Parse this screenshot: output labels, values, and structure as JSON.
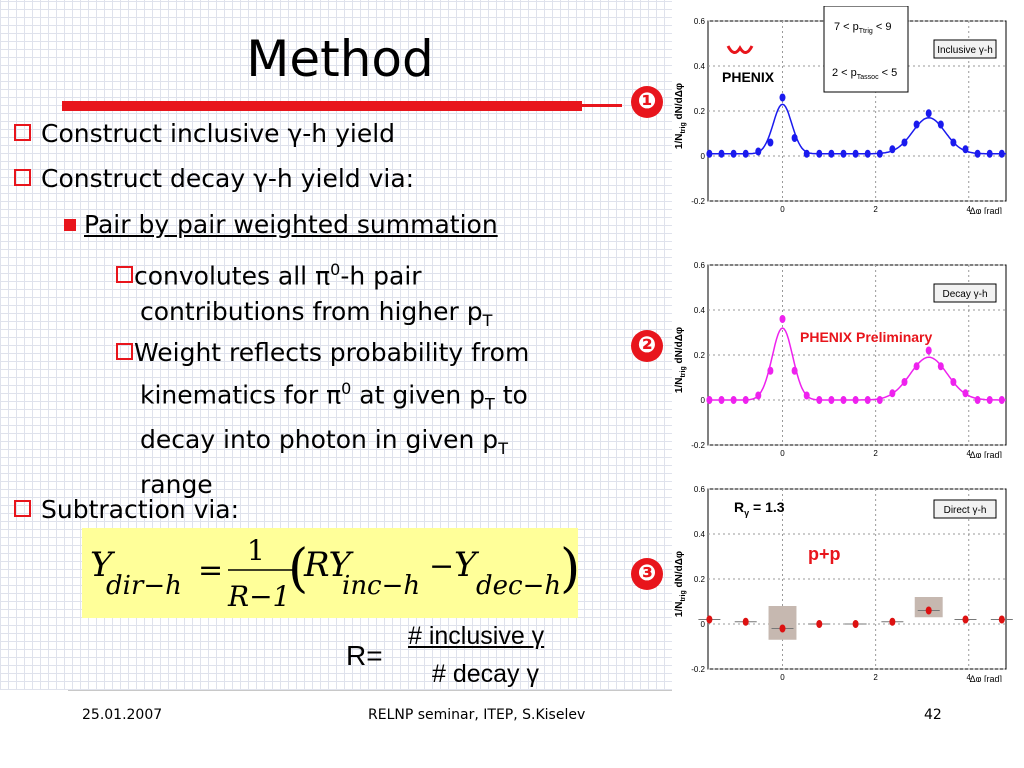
{
  "slide": {
    "title": "Method",
    "bullets": {
      "b1_pre": "Construct inclusive ",
      "b1_sym": "γ",
      "b1_post": "-h yield",
      "b2_pre": "Construct decay ",
      "b2_sym": "γ",
      "b2_post": "-h yield via:",
      "b3": "Pair by pair weighted summation",
      "b4_l1_pre": "convolutes all ",
      "b4_l1_sym": "π",
      "b4_l1_sup": "0",
      "b4_l1_post": "-h pair",
      "b4_l2": "contributions from higher p",
      "b4_l2_sub": "T",
      "b5_l1": "Weight reflects probability from",
      "b5_l2_pre": "kinematics for ",
      "b5_l2_sym": "π",
      "b5_l2_sup": "0",
      "b5_l2_mid": " at given p",
      "b5_l2_sub": "T",
      "b5_l2_post": " to",
      "b5_l3": "decay into photon in given p",
      "b5_l3_sub": "T",
      "b5_l4": "range",
      "b6": "Subtraction via:"
    },
    "formula": {
      "Y1": "Y",
      "sub1": "dir−h",
      "eq": "=",
      "one": "1",
      "den": "R−1",
      "lp": "(",
      "RY": "RY",
      "sub2": "inc−h",
      "minus": "−",
      "Y2": "Y",
      "sub3": "dec−h",
      "rp": ")"
    },
    "ratio": {
      "label": "R=",
      "numerator": "# inclusive γ",
      "denominator": "# decay γ"
    },
    "markers": [
      "❶",
      "❷",
      "❸"
    ],
    "footer": {
      "date": "25.01.2007",
      "center": "RELNP seminar,  ITEP,  S.Kiselev",
      "page": "42"
    }
  },
  "charts": {
    "c1": {
      "type": "scatter",
      "title": "Inclusive γ-h",
      "logo": "PHENIX",
      "info_line1_pre": "7 < p",
      "info_line1_sub": "Ttrig",
      "info_line1_post": " < 9",
      "info_line2_pre": "2 < p",
      "info_line2_sub": "Tassoc",
      "info_line2_post": " < 5",
      "ylabel": "1/N",
      "ylabel_sub": "trig",
      "ylabel_post": " dN/dΔφ",
      "xlabel": "Δφ [rad]",
      "yticks": [
        "0.6",
        "0.4",
        "0.2",
        "0",
        "-0.2"
      ],
      "xticks": [
        "0",
        "2",
        "4"
      ],
      "xlim": [
        -1.6,
        4.8
      ],
      "ylim": [
        -0.2,
        0.6
      ],
      "color": "#1a1aee",
      "x": [
        -1.57,
        -1.31,
        -1.05,
        -0.79,
        -0.52,
        -0.26,
        0.0,
        0.26,
        0.52,
        0.79,
        1.05,
        1.31,
        1.57,
        1.83,
        2.09,
        2.36,
        2.62,
        2.88,
        3.14,
        3.4,
        3.67,
        3.93,
        4.19,
        4.45,
        4.71
      ],
      "y": [
        0.01,
        0.01,
        0.01,
        0.01,
        0.02,
        0.06,
        0.26,
        0.08,
        0.01,
        0.01,
        0.01,
        0.01,
        0.01,
        0.01,
        0.01,
        0.03,
        0.06,
        0.14,
        0.19,
        0.14,
        0.06,
        0.03,
        0.01,
        0.01,
        0.01
      ],
      "fit": {
        "base": 0.01,
        "near_amp": 0.22,
        "near_sigma": 0.2,
        "away_amp": 0.16,
        "away_sigma": 0.35
      }
    },
    "c2": {
      "type": "scatter",
      "title": "Decay γ-h",
      "annotation": "PHENIX Preliminary",
      "ylabel": "1/N",
      "ylabel_sub": "trig",
      "ylabel_post": " dN/dΔφ",
      "xlabel": "Δφ [rad]",
      "yticks": [
        "0.6",
        "0.4",
        "0.2",
        "0",
        "-0.2"
      ],
      "xticks": [
        "0",
        "2",
        "4"
      ],
      "xlim": [
        -1.6,
        4.8
      ],
      "ylim": [
        -0.2,
        0.6
      ],
      "color": "#ee22ee",
      "x": [
        -1.57,
        -1.31,
        -1.05,
        -0.79,
        -0.52,
        -0.26,
        0.0,
        0.26,
        0.52,
        0.79,
        1.05,
        1.31,
        1.57,
        1.83,
        2.09,
        2.36,
        2.62,
        2.88,
        3.14,
        3.4,
        3.67,
        3.93,
        4.19,
        4.45,
        4.71
      ],
      "y": [
        0.0,
        0.0,
        0.0,
        0.0,
        0.02,
        0.13,
        0.36,
        0.13,
        0.02,
        0.0,
        0.0,
        0.0,
        0.0,
        0.0,
        0.0,
        0.03,
        0.08,
        0.15,
        0.22,
        0.15,
        0.08,
        0.03,
        0.0,
        0.0,
        0.0
      ],
      "fit": {
        "base": 0.0,
        "near_amp": 0.32,
        "near_sigma": 0.22,
        "away_amp": 0.19,
        "away_sigma": 0.4
      }
    },
    "c3": {
      "type": "scatter",
      "title": "Direct γ-h",
      "info_pre": "R",
      "info_sub": "γ",
      "info_post": " = 1.3",
      "annotation": "p+p",
      "ylabel": "1/N",
      "ylabel_sub": "trig",
      "ylabel_post": " dN/dΔφ",
      "xlabel": "Δφ [rad]",
      "yticks": [
        "0.6",
        "0.4",
        "0.2",
        "0",
        "-0.2"
      ],
      "xticks": [
        "0",
        "2",
        "4"
      ],
      "xlim": [
        -1.6,
        4.8
      ],
      "ylim": [
        -0.2,
        0.6
      ],
      "color": "#dd1111",
      "x": [
        -1.57,
        -0.79,
        0.0,
        0.79,
        1.57,
        2.36,
        3.14,
        3.93,
        4.71
      ],
      "y": [
        0.02,
        0.01,
        -0.02,
        0.0,
        0.0,
        0.01,
        0.06,
        0.02,
        0.02
      ],
      "sys_boxes": [
        {
          "x": 0.0,
          "y": -0.02,
          "hw": 0.3,
          "lo": -0.07,
          "hi": 0.08
        },
        {
          "x": 3.14,
          "y": 0.06,
          "hw": 0.3,
          "lo": 0.03,
          "hi": 0.12
        }
      ]
    }
  }
}
